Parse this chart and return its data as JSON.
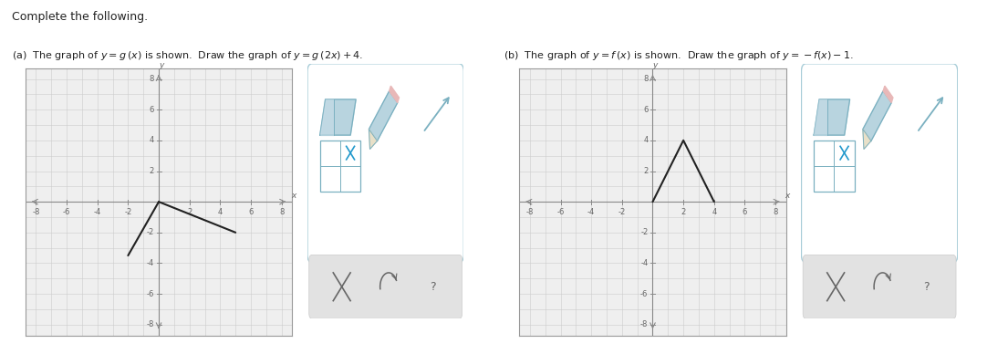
{
  "title_main": "Complete the following.",
  "graph_a_segments": [
    {
      "x": [
        -2,
        0
      ],
      "y": [
        -3.5,
        0
      ]
    },
    {
      "x": [
        0,
        5
      ],
      "y": [
        0,
        -2
      ]
    }
  ],
  "graph_b_segments": [
    {
      "x": [
        0,
        2,
        4
      ],
      "y": [
        0,
        4,
        0
      ]
    }
  ],
  "line_color": "#222222",
  "line_width": 1.5,
  "axis_range": [
    -8,
    8,
    -8,
    8
  ],
  "tick_step": 2,
  "grid_color": "#cccccc",
  "axis_color": "#888888",
  "tick_label_color": "#666666",
  "plot_bg": "#efefef",
  "page_bg": "#ffffff",
  "toolbox_border_color": "#a8cdd8",
  "toolbox_bg": "#ffffff",
  "bottom_bar_bg": "#e2e2e2",
  "bottom_bar_border": "#cccccc",
  "icon_stroke": "#7ab0c0",
  "icon_fill": "#b8d4df"
}
